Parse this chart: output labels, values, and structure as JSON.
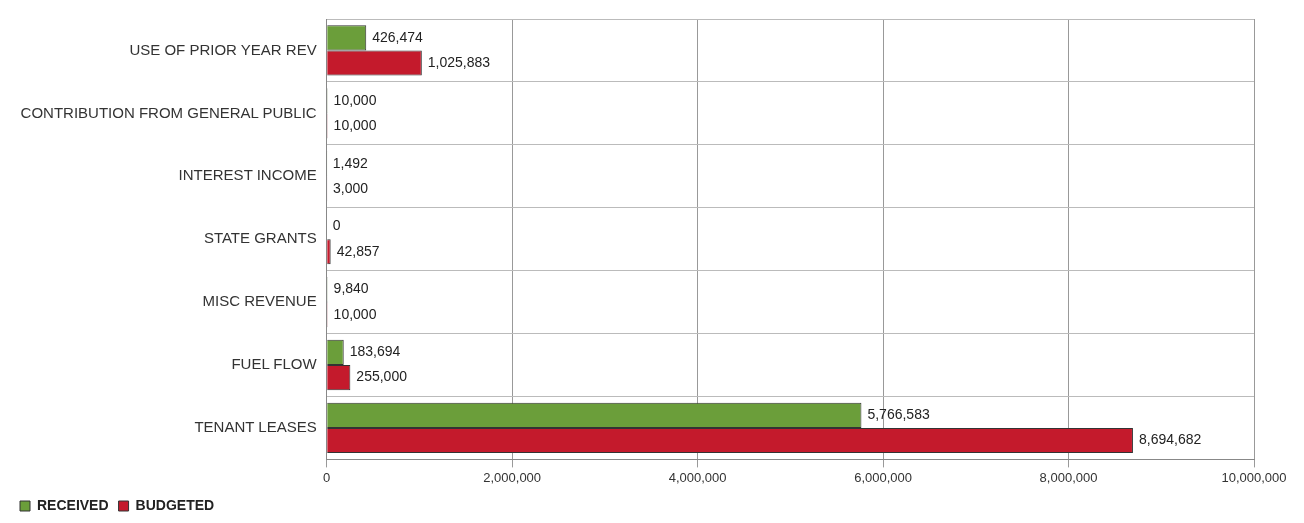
{
  "chart_data": {
    "type": "bar",
    "orientation": "horizontal",
    "categories": [
      "USE OF PRIOR YEAR REV",
      "CONTRIBUTION FROM GENERAL PUBLIC",
      "INTEREST INCOME",
      "STATE GRANTS",
      "MISC REVENUE",
      "FUEL FLOW",
      "TENANT LEASES"
    ],
    "series": [
      {
        "name": "RECEIVED",
        "color": "#6b9e3a",
        "values": [
          426474,
          10000,
          1492,
          0,
          9840,
          183694,
          5766583
        ],
        "value_labels": [
          "426,474",
          "10,000",
          "1,492",
          "0",
          "9,840",
          "183,694",
          "5,766,583"
        ]
      },
      {
        "name": "BUDGETED",
        "color": "#c41a2c",
        "values": [
          1025883,
          10000,
          3000,
          42857,
          10000,
          255000,
          8694682
        ],
        "value_labels": [
          "1,025,883",
          "10,000",
          "3,000",
          "42,857",
          "10,000",
          "255,000",
          "8,694,682"
        ]
      }
    ],
    "xlim": [
      0,
      10000000
    ],
    "xticks": [
      {
        "value": 0,
        "label": "0"
      },
      {
        "value": 2000000,
        "label": "2,000,000"
      },
      {
        "value": 4000000,
        "label": "4,000,000"
      },
      {
        "value": 6000000,
        "label": "6,000,000"
      },
      {
        "value": 8000000,
        "label": "8,000,000"
      },
      {
        "value": 10000000,
        "label": "10,000,000"
      }
    ],
    "grid": true,
    "legend": "bottom left"
  }
}
